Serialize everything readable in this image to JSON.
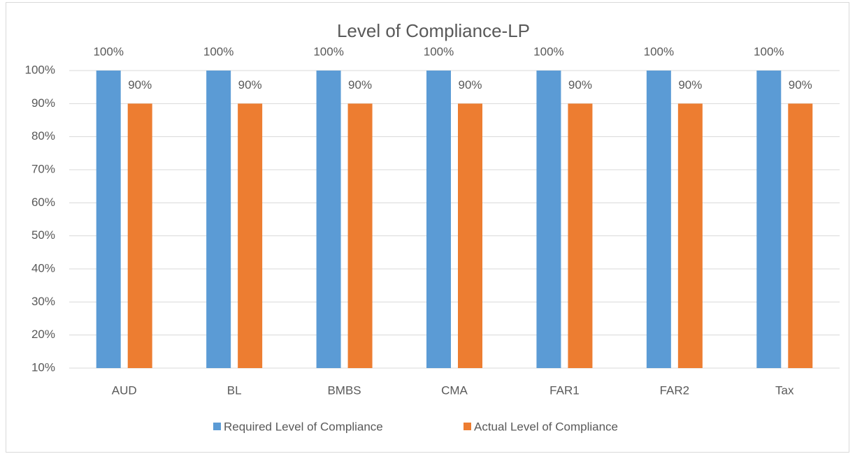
{
  "chart_data": {
    "type": "bar",
    "title": "Level of Compliance-LP",
    "categories": [
      "AUD",
      "BL",
      "BMBS",
      "CMA",
      "FAR1",
      "FAR2",
      "Tax"
    ],
    "series": [
      {
        "name": "Required Level of Compliance",
        "color": "#5b9bd5",
        "values": [
          100,
          100,
          100,
          100,
          100,
          100,
          100
        ],
        "value_labels": [
          "100%",
          "100%",
          "100%",
          "100%",
          "100%",
          "100%",
          "100%"
        ]
      },
      {
        "name": "Actual Level of Compliance",
        "color": "#ed7d31",
        "values": [
          90,
          90,
          90,
          90,
          90,
          90,
          90
        ],
        "value_labels": [
          "90%",
          "90%",
          "90%",
          "90%",
          "90%",
          "90%",
          "90%"
        ]
      }
    ],
    "ylim": [
      10,
      100
    ],
    "yticks": [
      {
        "value": 10,
        "label": "10%"
      },
      {
        "value": 20,
        "label": "20%"
      },
      {
        "value": 30,
        "label": "30%"
      },
      {
        "value": 40,
        "label": "40%"
      },
      {
        "value": 50,
        "label": "50%"
      },
      {
        "value": 60,
        "label": "60%"
      },
      {
        "value": 70,
        "label": "70%"
      },
      {
        "value": 80,
        "label": "80%"
      },
      {
        "value": 90,
        "label": "90%"
      },
      {
        "value": 100,
        "label": "100%"
      }
    ],
    "grid": true,
    "legend": "bottom"
  }
}
